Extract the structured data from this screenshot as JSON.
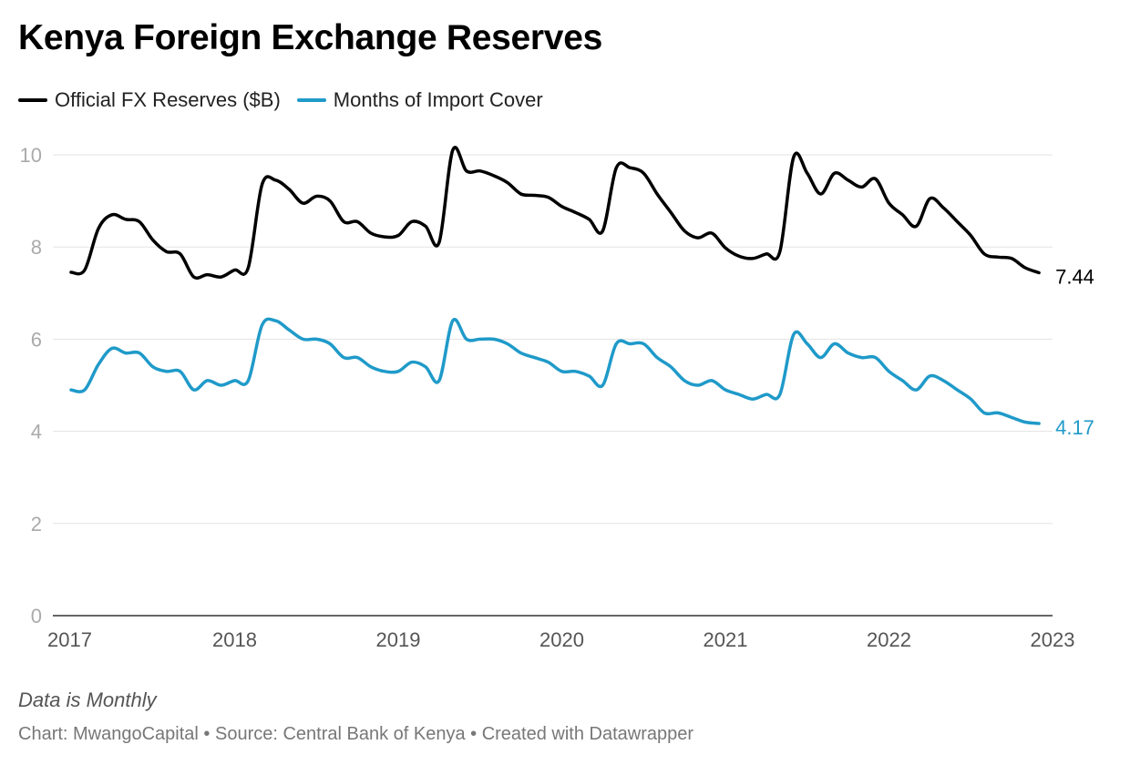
{
  "title": "Kenya Foreign Exchange Reserves",
  "legend": [
    {
      "label": "Official FX Reserves ($B)",
      "color": "#000000"
    },
    {
      "label": "Months of Import Cover",
      "color": "#1f9ac9"
    }
  ],
  "notes": "Data is Monthly",
  "footer": "Chart: MwangoCapital • Source: Central Bank of Kenya • Created with Datawrapper",
  "chart_data": {
    "type": "line",
    "title": "Kenya Foreign Exchange Reserves",
    "xlabel": "",
    "ylabel": "",
    "xlim": [
      2017.0,
      2023.0
    ],
    "ylim": [
      0,
      10
    ],
    "yticks": [
      0,
      2,
      4,
      6,
      8,
      10
    ],
    "xticks": [
      2017,
      2018,
      2019,
      2020,
      2021,
      2022,
      2023
    ],
    "grid": true,
    "legend_position": "top-left",
    "series": [
      {
        "name": "Official FX Reserves ($B)",
        "color": "#000000",
        "end_label": "7.44",
        "x": [
          2017.0,
          2017.083,
          2017.167,
          2017.25,
          2017.333,
          2017.417,
          2017.5,
          2017.583,
          2017.667,
          2017.75,
          2017.833,
          2017.917,
          2018.0,
          2018.083,
          2018.167,
          2018.25,
          2018.333,
          2018.417,
          2018.5,
          2018.583,
          2018.667,
          2018.75,
          2018.833,
          2018.917,
          2019.0,
          2019.083,
          2019.167,
          2019.25,
          2019.333,
          2019.417,
          2019.5,
          2019.583,
          2019.667,
          2019.75,
          2019.833,
          2019.917,
          2020.0,
          2020.083,
          2020.167,
          2020.25,
          2020.333,
          2020.417,
          2020.5,
          2020.583,
          2020.667,
          2020.75,
          2020.833,
          2020.917,
          2021.0,
          2021.083,
          2021.167,
          2021.25,
          2021.333,
          2021.417,
          2021.5,
          2021.583,
          2021.667,
          2021.75,
          2021.833,
          2021.917,
          2022.0,
          2022.083,
          2022.167,
          2022.25,
          2022.333,
          2022.417,
          2022.5,
          2022.583,
          2022.667,
          2022.75,
          2022.833,
          2022.917
        ],
        "values": [
          7.45,
          7.5,
          8.4,
          8.7,
          8.6,
          8.55,
          8.15,
          7.9,
          7.85,
          7.35,
          7.4,
          7.35,
          7.5,
          7.55,
          9.35,
          9.45,
          9.25,
          8.95,
          9.1,
          9.0,
          8.55,
          8.55,
          8.3,
          8.22,
          8.25,
          8.55,
          8.45,
          8.1,
          10.1,
          9.65,
          9.65,
          9.55,
          9.4,
          9.15,
          9.12,
          9.08,
          8.88,
          8.75,
          8.6,
          8.35,
          9.72,
          9.72,
          9.6,
          9.15,
          8.75,
          8.35,
          8.2,
          8.3,
          7.98,
          7.8,
          7.75,
          7.85,
          7.9,
          9.95,
          9.6,
          9.15,
          9.6,
          9.45,
          9.3,
          9.48,
          8.95,
          8.7,
          8.45,
          9.05,
          8.85,
          8.55,
          8.25,
          7.85,
          7.78,
          7.75,
          7.55,
          7.44
        ]
      },
      {
        "name": "Months of Import Cover",
        "color": "#1f9ac9",
        "end_label": "4.17",
        "x": [
          2017.0,
          2017.083,
          2017.167,
          2017.25,
          2017.333,
          2017.417,
          2017.5,
          2017.583,
          2017.667,
          2017.75,
          2017.833,
          2017.917,
          2018.0,
          2018.083,
          2018.167,
          2018.25,
          2018.333,
          2018.417,
          2018.5,
          2018.583,
          2018.667,
          2018.75,
          2018.833,
          2018.917,
          2019.0,
          2019.083,
          2019.167,
          2019.25,
          2019.333,
          2019.417,
          2019.5,
          2019.583,
          2019.667,
          2019.75,
          2019.833,
          2019.917,
          2020.0,
          2020.083,
          2020.167,
          2020.25,
          2020.333,
          2020.417,
          2020.5,
          2020.583,
          2020.667,
          2020.75,
          2020.833,
          2020.917,
          2021.0,
          2021.083,
          2021.167,
          2021.25,
          2021.333,
          2021.417,
          2021.5,
          2021.583,
          2021.667,
          2021.75,
          2021.833,
          2021.917,
          2022.0,
          2022.083,
          2022.167,
          2022.25,
          2022.333,
          2022.417,
          2022.5,
          2022.583,
          2022.667,
          2022.75,
          2022.833,
          2022.917
        ],
        "values": [
          4.9,
          4.9,
          5.45,
          5.8,
          5.7,
          5.7,
          5.4,
          5.3,
          5.3,
          4.9,
          5.1,
          5.0,
          5.1,
          5.1,
          6.3,
          6.4,
          6.2,
          6.0,
          6.0,
          5.9,
          5.6,
          5.6,
          5.4,
          5.3,
          5.3,
          5.5,
          5.4,
          5.1,
          6.4,
          6.0,
          6.0,
          6.0,
          5.9,
          5.7,
          5.6,
          5.5,
          5.3,
          5.3,
          5.2,
          5.0,
          5.9,
          5.9,
          5.9,
          5.6,
          5.4,
          5.1,
          5.0,
          5.1,
          4.9,
          4.8,
          4.7,
          4.8,
          4.8,
          6.1,
          5.9,
          5.6,
          5.9,
          5.7,
          5.6,
          5.6,
          5.3,
          5.1,
          4.9,
          5.2,
          5.1,
          4.9,
          4.7,
          4.4,
          4.4,
          4.3,
          4.2,
          4.17
        ]
      }
    ]
  }
}
